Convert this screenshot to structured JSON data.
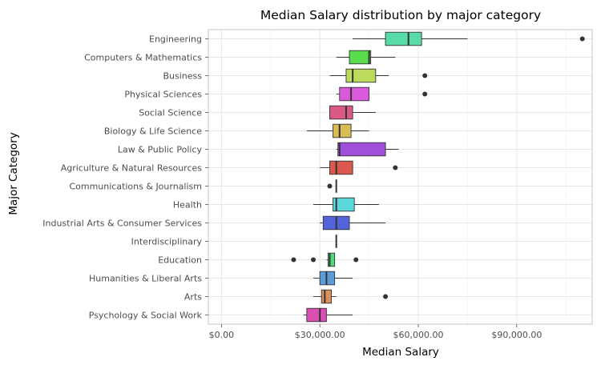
{
  "chart_data": {
    "type": "boxplot",
    "orientation": "horizontal",
    "title": "Median Salary distribution by major category",
    "xlabel": "Median Salary",
    "ylabel": "Major Category",
    "xlim": [
      -4000,
      113000
    ],
    "x_ticks": [
      0,
      30000,
      60000,
      90000
    ],
    "x_tick_labels": [
      "$0.00",
      "$30,000.00",
      "$60,000.00",
      "$90,000.00"
    ],
    "grid": true,
    "legend": "none",
    "categories": [
      "Engineering",
      "Computers & Mathematics",
      "Business",
      "Physical Sciences",
      "Social Science",
      "Biology & Life Science",
      "Law & Public Policy",
      "Agriculture & Natural Resources",
      "Communications & Journalism",
      "Health",
      "Industrial Arts & Consumer Services",
      "Interdisciplinary",
      "Education",
      "Humanities & Liberal Arts",
      "Arts",
      "Psychology & Social Work"
    ],
    "boxes": [
      {
        "category": "Engineering",
        "whisker_low": 40000,
        "q1": 50000,
        "median": 57000,
        "q3": 61000,
        "whisker_high": 75000,
        "outliers": [
          110000
        ],
        "color": "#59DBA8"
      },
      {
        "category": "Computers & Mathematics",
        "whisker_low": 35000,
        "q1": 39000,
        "median": 45000,
        "q3": 45500,
        "whisker_high": 53000,
        "outliers": [],
        "color": "#5BDB4E"
      },
      {
        "category": "Business",
        "whisker_low": 33000,
        "q1": 38000,
        "median": 40000,
        "q3": 47000,
        "whisker_high": 51000,
        "outliers": [
          62000
        ],
        "color": "#BCDB5C"
      },
      {
        "category": "Physical Sciences",
        "whisker_low": 35000,
        "q1": 36000,
        "median": 39500,
        "q3": 45000,
        "whisker_high": 45000,
        "outliers": [
          62000
        ],
        "color": "#D95BDB"
      },
      {
        "category": "Social Science",
        "whisker_low": 33000,
        "q1": 33000,
        "median": 38000,
        "q3": 40000,
        "whisker_high": 47000,
        "outliers": [],
        "color": "#DB5A83"
      },
      {
        "category": "Biology & Life Science",
        "whisker_low": 26000,
        "q1": 34000,
        "median": 36000,
        "q3": 39500,
        "whisker_high": 45000,
        "outliers": [],
        "color": "#D8BC54"
      },
      {
        "category": "Law & Public Policy",
        "whisker_low": 35000,
        "q1": 35500,
        "median": 36000,
        "q3": 50000,
        "whisker_high": 54000,
        "outliers": [],
        "color": "#9F4FDB"
      },
      {
        "category": "Agriculture & Natural Resources",
        "whisker_low": 30000,
        "q1": 33000,
        "median": 35000,
        "q3": 40000,
        "whisker_high": 40000,
        "outliers": [
          53000
        ],
        "color": "#DB584F"
      },
      {
        "category": "Communications & Journalism",
        "whisker_low": 35000,
        "q1": 35000,
        "median": 35000,
        "q3": 35000,
        "whisker_high": 35000,
        "outliers": [
          33000
        ],
        "color": "#4F5BDB"
      },
      {
        "category": "Health",
        "whisker_low": 28000,
        "q1": 34000,
        "median": 35000,
        "q3": 40500,
        "whisker_high": 48000,
        "outliers": [],
        "color": "#5BD8DB"
      },
      {
        "category": "Industrial Arts & Consumer Services",
        "whisker_low": 30000,
        "q1": 31000,
        "median": 35000,
        "q3": 39000,
        "whisker_high": 50000,
        "outliers": [],
        "color": "#5363DB"
      },
      {
        "category": "Interdisciplinary",
        "whisker_low": 35000,
        "q1": 35000,
        "median": 35000,
        "q3": 35000,
        "whisker_high": 35000,
        "outliers": [],
        "color": "#DB5CB8"
      },
      {
        "category": "Education",
        "whisker_low": 32000,
        "q1": 32500,
        "median": 33000,
        "q3": 34500,
        "whisker_high": 34500,
        "outliers": [
          22000,
          28000,
          41000
        ],
        "color": "#4FDB77"
      },
      {
        "category": "Humanities & Liberal Arts",
        "whisker_low": 28000,
        "q1": 30000,
        "median": 32000,
        "q3": 34500,
        "whisker_high": 40000,
        "outliers": [],
        "color": "#5A9DDB"
      },
      {
        "category": "Arts",
        "whisker_low": 28000,
        "q1": 30500,
        "median": 31500,
        "q3": 33500,
        "whisker_high": 35000,
        "outliers": [
          50000
        ],
        "color": "#DB915A"
      },
      {
        "category": "Psychology & Social Work",
        "whisker_low": 25000,
        "q1": 26000,
        "median": 30000,
        "q3": 32000,
        "whisker_high": 40000,
        "outliers": [],
        "color": "#DB4FB2"
      }
    ]
  }
}
